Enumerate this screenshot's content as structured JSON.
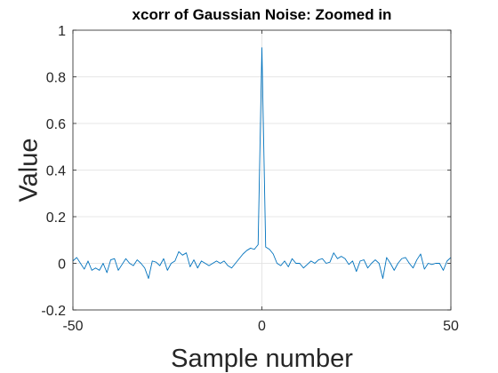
{
  "chart_data": {
    "type": "line",
    "title": "xcorr of Gaussian Noise: Zoomed in",
    "xlabel": "Sample number",
    "ylabel": "Value",
    "xlim": [
      -50,
      50
    ],
    "ylim": [
      -0.2,
      1
    ],
    "grid": true,
    "xticks": [
      -50,
      0,
      50
    ],
    "xtick_labels": [
      "-50",
      "0",
      "50"
    ],
    "yticks": [
      -0.2,
      0,
      0.2,
      0.4,
      0.6,
      0.8,
      1
    ],
    "ytick_labels": [
      "-0.2",
      "0",
      "0.2",
      "0.4",
      "0.6",
      "0.8",
      "1"
    ],
    "series": [
      {
        "color": "#0072BD",
        "x": [
          -50,
          -49,
          -48,
          -47,
          -46,
          -45,
          -44,
          -43,
          -42,
          -41,
          -40,
          -39,
          -38,
          -37,
          -36,
          -35,
          -34,
          -33,
          -32,
          -31,
          -30,
          -29,
          -28,
          -27,
          -26,
          -25,
          -24,
          -23,
          -22,
          -21,
          -20,
          -19,
          -18,
          -17,
          -16,
          -15,
          -14,
          -13,
          -12,
          -11,
          -10,
          -9,
          -8,
          -7,
          -6,
          -5,
          -4,
          -3,
          -2,
          -1,
          0,
          1,
          2,
          3,
          4,
          5,
          6,
          7,
          8,
          9,
          10,
          11,
          12,
          13,
          14,
          15,
          16,
          17,
          18,
          19,
          20,
          21,
          22,
          23,
          24,
          25,
          26,
          27,
          28,
          29,
          30,
          31,
          32,
          33,
          34,
          35,
          36,
          37,
          38,
          39,
          40,
          41,
          42,
          43,
          44,
          45,
          46,
          47,
          48,
          49,
          50
        ],
        "y": [
          0.01,
          0.025,
          0.0,
          -0.025,
          0.01,
          -0.03,
          -0.02,
          -0.03,
          0.0,
          -0.04,
          0.015,
          0.02,
          -0.03,
          -0.005,
          0.02,
          0.0,
          -0.01,
          0.015,
          0.0,
          -0.02,
          -0.065,
          0.01,
          0.005,
          -0.01,
          0.02,
          -0.03,
          0.0,
          0.01,
          0.05,
          0.035,
          0.045,
          -0.015,
          0.015,
          -0.02,
          0.01,
          0.0,
          -0.01,
          0.0,
          0.01,
          0.0,
          0.01,
          -0.01,
          -0.02,
          0.0,
          0.02,
          0.04,
          0.055,
          0.065,
          0.06,
          0.08,
          0.925,
          0.07,
          0.06,
          0.04,
          0.0,
          -0.01,
          0.01,
          -0.015,
          0.02,
          0.0,
          0.0,
          -0.02,
          -0.005,
          0.01,
          0.0,
          0.015,
          0.02,
          0.0,
          0.005,
          0.045,
          0.02,
          0.03,
          0.02,
          -0.005,
          0.01,
          -0.035,
          0.01,
          0.015,
          -0.02,
          0.0,
          0.015,
          0.0,
          -0.065,
          0.025,
          0.0,
          -0.03,
          0.0,
          0.02,
          0.025,
          0.0,
          -0.02,
          0.015,
          0.04,
          -0.025,
          0.0,
          -0.005,
          0.0,
          0.0,
          -0.03,
          0.01,
          0.025
        ]
      }
    ]
  }
}
